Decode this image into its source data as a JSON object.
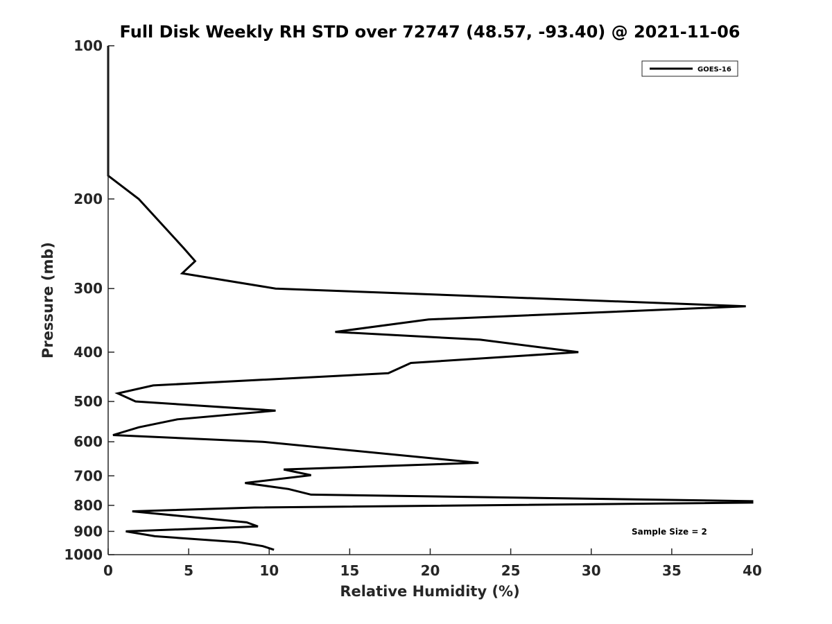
{
  "chart_data": {
    "type": "line",
    "title": "Full Disk Weekly RH STD over 72747 (48.57, -93.40) @ 2021-11-06",
    "xlabel": "Relative Humidity (%)",
    "ylabel": "Pressure (mb)",
    "xlim": [
      0,
      40
    ],
    "ylim": [
      100,
      1000
    ],
    "yscale": "log",
    "yaxis_reversed": true,
    "xticks": [
      0,
      5,
      10,
      15,
      20,
      25,
      30,
      35,
      40
    ],
    "yticks": [
      100,
      200,
      300,
      400,
      500,
      600,
      700,
      800,
      900,
      1000
    ],
    "legend": {
      "position": "top-right",
      "entries": [
        "GOES-16"
      ]
    },
    "annotation": "Sample Size = 2",
    "series": [
      {
        "name": "GOES-16",
        "color": "#000000",
        "points": [
          [
            0,
            100
          ],
          [
            0,
            180
          ],
          [
            1.9,
            200
          ],
          [
            4.7,
            250
          ],
          [
            5.4,
            265
          ],
          [
            4.6,
            280
          ],
          [
            10.4,
            300
          ],
          [
            39.6,
            325
          ],
          [
            19.9,
            345
          ],
          [
            14.1,
            365
          ],
          [
            23.1,
            378
          ],
          [
            29.2,
            400
          ],
          [
            18.8,
            420
          ],
          [
            17.4,
            440
          ],
          [
            2.8,
            465
          ],
          [
            0.6,
            482
          ],
          [
            1.7,
            500
          ],
          [
            10.4,
            521
          ],
          [
            4.3,
            542
          ],
          [
            1.9,
            562
          ],
          [
            0.3,
            582
          ],
          [
            9.6,
            600
          ],
          [
            23.0,
            660
          ],
          [
            10.9,
            680
          ],
          [
            12.6,
            698
          ],
          [
            8.5,
            723
          ],
          [
            11.2,
            743
          ],
          [
            12.6,
            762
          ],
          [
            40,
            785
          ],
          [
            40,
            790
          ],
          [
            9.1,
            808
          ],
          [
            1.5,
            822
          ],
          [
            8.6,
            864
          ],
          [
            9.3,
            880
          ],
          [
            1.1,
            900
          ],
          [
            2.9,
            920
          ],
          [
            8.1,
            945
          ],
          [
            9.6,
            962
          ],
          [
            10.3,
            978
          ]
        ]
      }
    ]
  }
}
